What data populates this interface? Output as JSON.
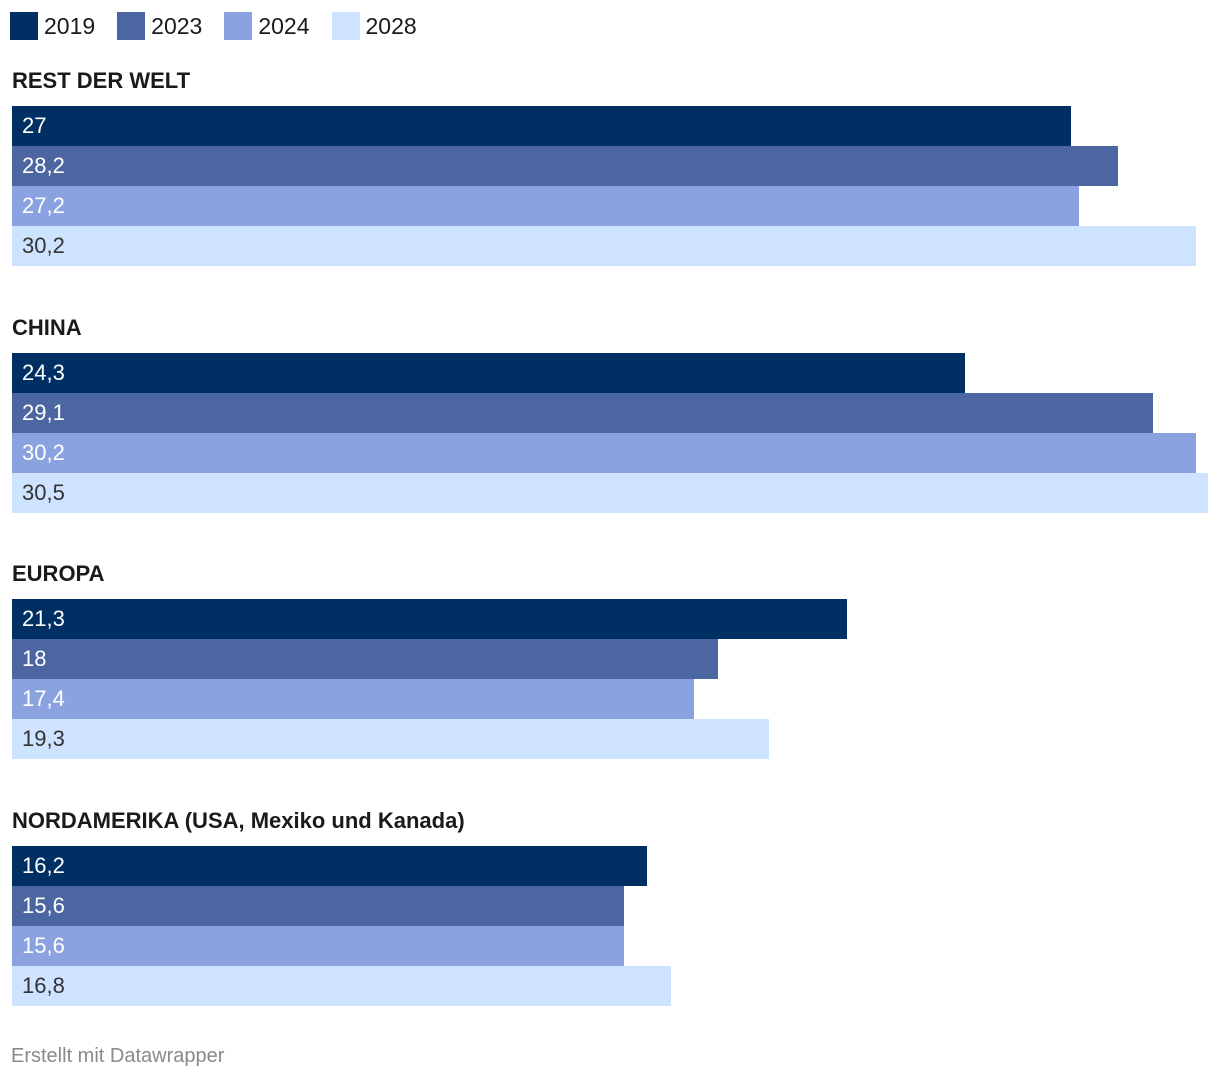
{
  "chart_data": {
    "type": "bar",
    "orientation": "horizontal",
    "legend_position": "top-left",
    "series": [
      {
        "name": "2019",
        "color": "#002f64"
      },
      {
        "name": "2023",
        "color": "#4b66a1"
      },
      {
        "name": "2024",
        "color": "#8aa2e0"
      },
      {
        "name": "2028",
        "color": "#cde3ff"
      }
    ],
    "groups": [
      {
        "title": "REST DER WELT",
        "values": [
          27,
          28.2,
          27.2,
          30.2
        ],
        "labels": [
          "27",
          "28,2",
          "27,2",
          "30,2"
        ]
      },
      {
        "title": "CHINA",
        "values": [
          24.3,
          29.1,
          30.2,
          30.5
        ],
        "labels": [
          "24,3",
          "29,1",
          "30,2",
          "30,5"
        ]
      },
      {
        "title": "EUROPA",
        "values": [
          21.3,
          18,
          17.4,
          19.3
        ],
        "labels": [
          "21,3",
          "18",
          "17,4",
          "19,3"
        ]
      },
      {
        "title": "NORDAMERIKA (USA, Mexiko und Kanada)",
        "values": [
          16.2,
          15.6,
          15.6,
          16.8
        ],
        "labels": [
          "16,2",
          "15,6",
          "15,6",
          "16,8"
        ]
      }
    ],
    "xlim": [
      0,
      30.5
    ],
    "label_colors": [
      "#ffffff",
      "#ffffff",
      "#ffffff",
      "#333333"
    ]
  },
  "footer": {
    "credit": "Erstellt mit Datawrapper"
  }
}
